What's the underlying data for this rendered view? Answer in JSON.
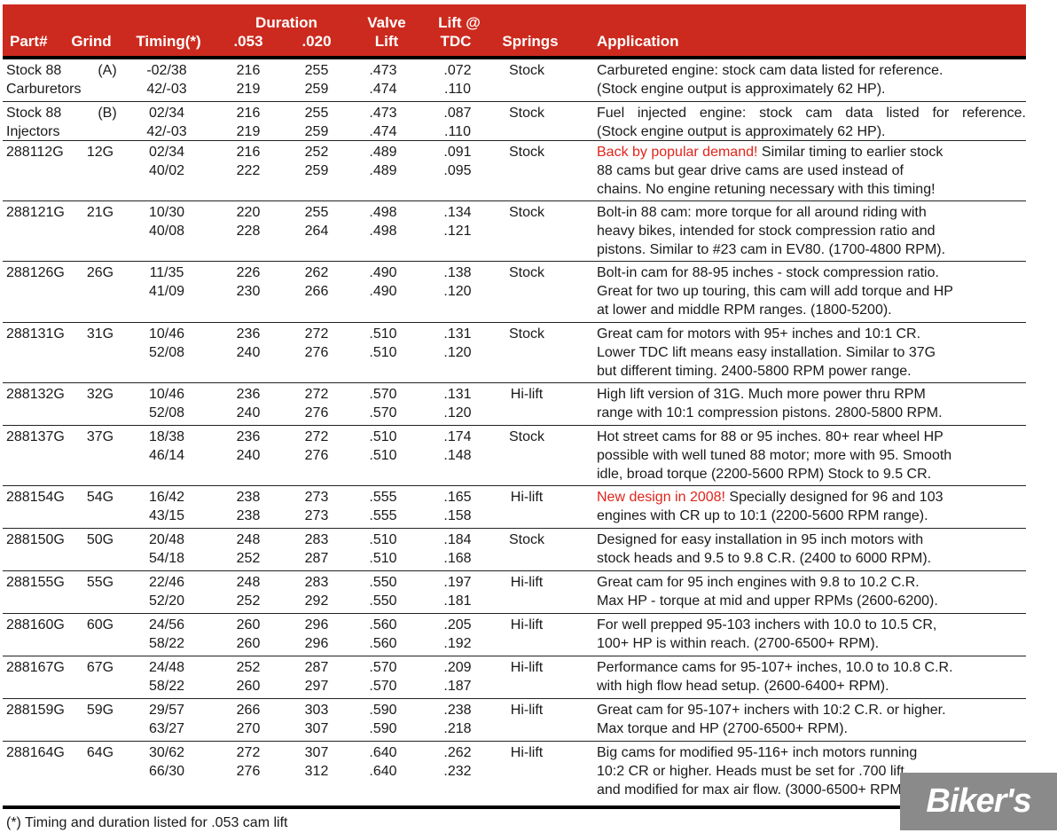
{
  "header": {
    "part": "Part#",
    "grind": "Grind",
    "timing": "Timing(*)",
    "duration": "Duration",
    "d053": ".053",
    "d020": ".020",
    "valve1": "Valve",
    "valve2": "Lift",
    "tdc1": "Lift @",
    "tdc2": "TDC",
    "springs": "Springs",
    "application": "Application"
  },
  "colors": {
    "header_bg": "#cc2a1e",
    "highlight": "#e0241b"
  },
  "rows": [
    {
      "part": [
        "Stock 88",
        "Carburetors"
      ],
      "grind": "(A)",
      "timing": [
        "-02/38",
        "42/-03"
      ],
      "d053": [
        "216",
        "219"
      ],
      "d020": [
        "255",
        "259"
      ],
      "lift": [
        ".473",
        ".474"
      ],
      "tdc": [
        ".072",
        ".110"
      ],
      "springs": "Stock",
      "highlight": "",
      "app": [
        "Carbureted engine: stock cam data listed for reference.",
        "(Stock engine output is approximately 62 HP)."
      ]
    },
    {
      "part": [
        "Stock 88",
        "Injectors"
      ],
      "grind": "(B)",
      "timing": [
        "02/34",
        "42/-03"
      ],
      "d053": [
        "216",
        "219"
      ],
      "d020": [
        "255",
        "259"
      ],
      "lift": [
        ".473",
        ".474"
      ],
      "tdc": [
        ".087",
        ".110"
      ],
      "springs": "Stock",
      "highlight": "",
      "app": [
        "Fuel injected engine: stock cam data listed for reference.",
        "(Stock engine output is approximately 62 HP)."
      ],
      "justify_first": true
    },
    {
      "part": [
        "288112G"
      ],
      "grind": "12G",
      "timing": [
        "02/34",
        "40/02"
      ],
      "d053": [
        "216",
        "222"
      ],
      "d020": [
        "252",
        "259"
      ],
      "lift": [
        ".489",
        ".489"
      ],
      "tdc": [
        ".091",
        ".095"
      ],
      "springs": "Stock",
      "highlight": "Back by popular demand!",
      "app": [
        " Similar timing to earlier stock",
        "88 cams but gear drive cams are used instead of",
        "chains. No engine retuning necessary with this timing!"
      ]
    },
    {
      "part": [
        "288121G"
      ],
      "grind": "21G",
      "timing": [
        "10/30",
        "40/08"
      ],
      "d053": [
        "220",
        "228"
      ],
      "d020": [
        "255",
        "264"
      ],
      "lift": [
        ".498",
        ".498"
      ],
      "tdc": [
        ".134",
        ".121"
      ],
      "springs": "Stock",
      "highlight": "",
      "app": [
        "Bolt-in 88 cam: more torque for all around riding with",
        "heavy bikes, intended for stock compression ratio and",
        "pistons. Similar to #23 cam in EV80. (1700-4800 RPM)."
      ]
    },
    {
      "part": [
        "288126G"
      ],
      "grind": "26G",
      "timing": [
        "11/35",
        "41/09"
      ],
      "d053": [
        "226",
        "230"
      ],
      "d020": [
        "262",
        "266"
      ],
      "lift": [
        ".490",
        ".490"
      ],
      "tdc": [
        ".138",
        ".120"
      ],
      "springs": "Stock",
      "highlight": "",
      "app": [
        "Bolt-in cam for 88-95 inches - stock compression ratio.",
        "Great for two up touring, this cam will add torque and HP",
        "at lower and middle RPM ranges. (1800-5200)."
      ]
    },
    {
      "part": [
        "288131G"
      ],
      "grind": "31G",
      "timing": [
        "10/46",
        "52/08"
      ],
      "d053": [
        "236",
        "240"
      ],
      "d020": [
        "272",
        "276"
      ],
      "lift": [
        ".510",
        ".510"
      ],
      "tdc": [
        ".131",
        ".120"
      ],
      "springs": "Stock",
      "highlight": "",
      "app": [
        "Great cam for motors with 95+ inches and 10:1 CR.",
        "Lower TDC lift means easy installation. Similar to 37G",
        "but different timing. 2400-5800 RPM power range."
      ]
    },
    {
      "part": [
        "288132G"
      ],
      "grind": "32G",
      "timing": [
        "10/46",
        "52/08"
      ],
      "d053": [
        "236",
        "240"
      ],
      "d020": [
        "272",
        "276"
      ],
      "lift": [
        ".570",
        ".570"
      ],
      "tdc": [
        ".131",
        ".120"
      ],
      "springs": "Hi-lift",
      "highlight": "",
      "app": [
        "High lift version of 31G. Much more power thru RPM",
        "range with 10:1 compression pistons. 2800-5800 RPM."
      ]
    },
    {
      "part": [
        "288137G"
      ],
      "grind": "37G",
      "timing": [
        "18/38",
        "46/14"
      ],
      "d053": [
        "236",
        "240"
      ],
      "d020": [
        "272",
        "276"
      ],
      "lift": [
        ".510",
        ".510"
      ],
      "tdc": [
        ".174",
        ".148"
      ],
      "springs": "Stock",
      "highlight": "",
      "app": [
        "Hot street cams for 88 or 95 inches. 80+ rear wheel HP",
        "possible with well tuned 88 motor; more with 95. Smooth",
        "idle, broad torque (2200-5600 RPM) Stock to 9.5 CR."
      ]
    },
    {
      "part": [
        "288154G"
      ],
      "grind": "54G",
      "timing": [
        "16/42",
        "43/15"
      ],
      "d053": [
        "238",
        "238"
      ],
      "d020": [
        "273",
        "273"
      ],
      "lift": [
        ".555",
        ".555"
      ],
      "tdc": [
        ".165",
        ".158"
      ],
      "springs": "Hi-lift",
      "highlight": "New design in 2008!",
      "app": [
        " Specially designed for 96 and 103",
        "engines with CR up to 10:1 (2200-5600 RPM range)."
      ]
    },
    {
      "part": [
        "288150G"
      ],
      "grind": "50G",
      "timing": [
        "20/48",
        "54/18"
      ],
      "d053": [
        "248",
        "252"
      ],
      "d020": [
        "283",
        "287"
      ],
      "lift": [
        ".510",
        ".510"
      ],
      "tdc": [
        ".184",
        ".168"
      ],
      "springs": "Stock",
      "highlight": "",
      "app": [
        "Designed for easy installation in 95 inch motors with",
        "stock heads and 9.5 to 9.8 C.R. (2400 to 6000 RPM)."
      ]
    },
    {
      "part": [
        "288155G"
      ],
      "grind": "55G",
      "timing": [
        "22/46",
        "52/20"
      ],
      "d053": [
        "248",
        "252"
      ],
      "d020": [
        "283",
        "292"
      ],
      "lift": [
        ".550",
        ".550"
      ],
      "tdc": [
        ".197",
        ".181"
      ],
      "springs": "Hi-lift",
      "highlight": "",
      "app": [
        "Great cam for 95 inch engines with 9.8 to 10.2 C.R.",
        "Max HP - torque at mid and upper RPMs (2600-6200)."
      ]
    },
    {
      "part": [
        "288160G"
      ],
      "grind": "60G",
      "timing": [
        "24/56",
        "58/22"
      ],
      "d053": [
        "260",
        "260"
      ],
      "d020": [
        "296",
        "296"
      ],
      "lift": [
        ".560",
        ".560"
      ],
      "tdc": [
        ".205",
        ".192"
      ],
      "springs": "Hi-lift",
      "highlight": "",
      "app": [
        "For well prepped 95-103 inchers with 10.0 to 10.5 CR,",
        "100+ HP is within reach. (2700-6500+ RPM)."
      ]
    },
    {
      "part": [
        "288167G"
      ],
      "grind": "67G",
      "timing": [
        "24/48",
        "58/22"
      ],
      "d053": [
        "252",
        "260"
      ],
      "d020": [
        "287",
        "297"
      ],
      "lift": [
        ".570",
        ".570"
      ],
      "tdc": [
        ".209",
        ".187"
      ],
      "springs": "Hi-lift",
      "highlight": "",
      "app": [
        "Performance cams for 95-107+ inches, 10.0 to 10.8 C.R.",
        "with high flow head setup. (2600-6400+ RPM)."
      ]
    },
    {
      "part": [
        "288159G"
      ],
      "grind": "59G",
      "timing": [
        "29/57",
        "63/27"
      ],
      "d053": [
        "266",
        "270"
      ],
      "d020": [
        "303",
        "307"
      ],
      "lift": [
        ".590",
        ".590"
      ],
      "tdc": [
        ".238",
        ".218"
      ],
      "springs": "Hi-lift",
      "highlight": "",
      "app": [
        "Great cam for 95-107+ inchers with 10:2 C.R. or higher.",
        "Max torque and HP (2700-6500+ RPM)."
      ]
    },
    {
      "part": [
        "288164G"
      ],
      "grind": "64G",
      "timing": [
        "30/62",
        "66/30"
      ],
      "d053": [
        "272",
        "276"
      ],
      "d020": [
        "307",
        "312"
      ],
      "lift": [
        ".640",
        ".640"
      ],
      "tdc": [
        ".262",
        ".232"
      ],
      "springs": "Hi-lift",
      "highlight": "",
      "app": [
        "Big cams for modified 95-116+ inch motors running",
        "10:2 CR or higher. Heads must be set for .700 lift",
        "and modified for max air flow. (3000-6500+ RPM)."
      ]
    }
  ],
  "footnote": "(*) Timing and duration listed for .053 cam lift",
  "watermark": "Biker's Store"
}
